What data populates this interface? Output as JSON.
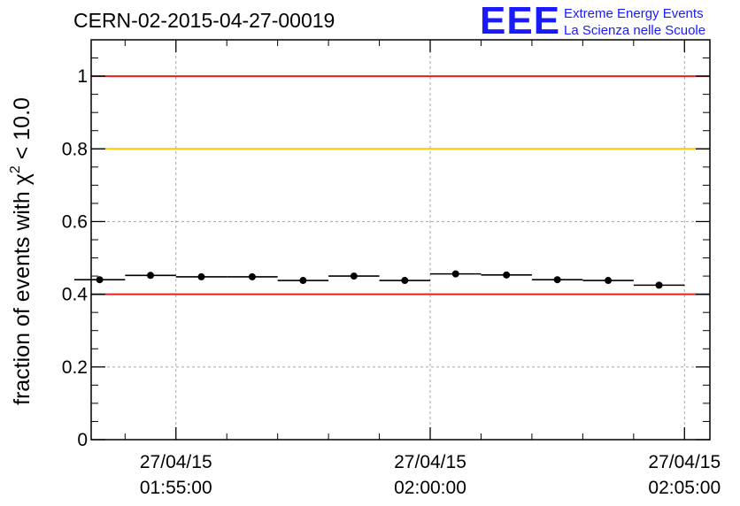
{
  "header": {
    "run_id": "CERN-02-2015-04-27-00019",
    "logo_text": "EEE",
    "logo_line1": "Extreme Energy Events",
    "logo_line2": "La Scienza nelle Scuole"
  },
  "chart_data": {
    "type": "scatter",
    "ylabel": "fraction of events with χ² < 10.0",
    "ylabel_main": "fraction of events with χ",
    "ylabel_sup": "2",
    "ylabel_tail": " < 10.0",
    "ylim": [
      0,
      1.1
    ],
    "yticks": [
      0,
      0.2,
      0.4,
      0.6,
      0.8,
      1
    ],
    "ytick_labels": [
      "0",
      "0.2",
      "0.4",
      "0.6",
      "0.8",
      "1"
    ],
    "xlim": [
      "2015-04-27 01:53:20",
      "2015-04-27 02:05:30"
    ],
    "xticks": [
      {
        "time": "2015-04-27 01:55:00",
        "date_label": "27/04/15",
        "time_label": "01:55:00"
      },
      {
        "time": "2015-04-27 02:00:00",
        "date_label": "27/04/15",
        "time_label": "02:00:00"
      },
      {
        "time": "2015-04-27 02:05:00",
        "date_label": "27/04/15",
        "time_label": "02:05:00"
      }
    ],
    "grid": true,
    "reference_lines": [
      {
        "y": 1.0,
        "color": "#e8201c"
      },
      {
        "y": 0.8,
        "color": "#ffc800"
      },
      {
        "y": 0.4,
        "color": "#e8201c"
      }
    ],
    "bin_width_seconds": 60,
    "points": [
      {
        "x": "2015-04-27 01:53:30",
        "y": 0.44
      },
      {
        "x": "2015-04-27 01:54:30",
        "y": 0.452
      },
      {
        "x": "2015-04-27 01:55:30",
        "y": 0.448
      },
      {
        "x": "2015-04-27 01:56:30",
        "y": 0.448
      },
      {
        "x": "2015-04-27 01:57:30",
        "y": 0.438
      },
      {
        "x": "2015-04-27 01:58:30",
        "y": 0.45
      },
      {
        "x": "2015-04-27 01:59:30",
        "y": 0.438
      },
      {
        "x": "2015-04-27 02:00:30",
        "y": 0.456
      },
      {
        "x": "2015-04-27 02:01:30",
        "y": 0.453
      },
      {
        "x": "2015-04-27 02:02:30",
        "y": 0.44
      },
      {
        "x": "2015-04-27 02:03:30",
        "y": 0.438
      },
      {
        "x": "2015-04-27 02:04:30",
        "y": 0.425
      }
    ],
    "marker_color": "#000000"
  }
}
